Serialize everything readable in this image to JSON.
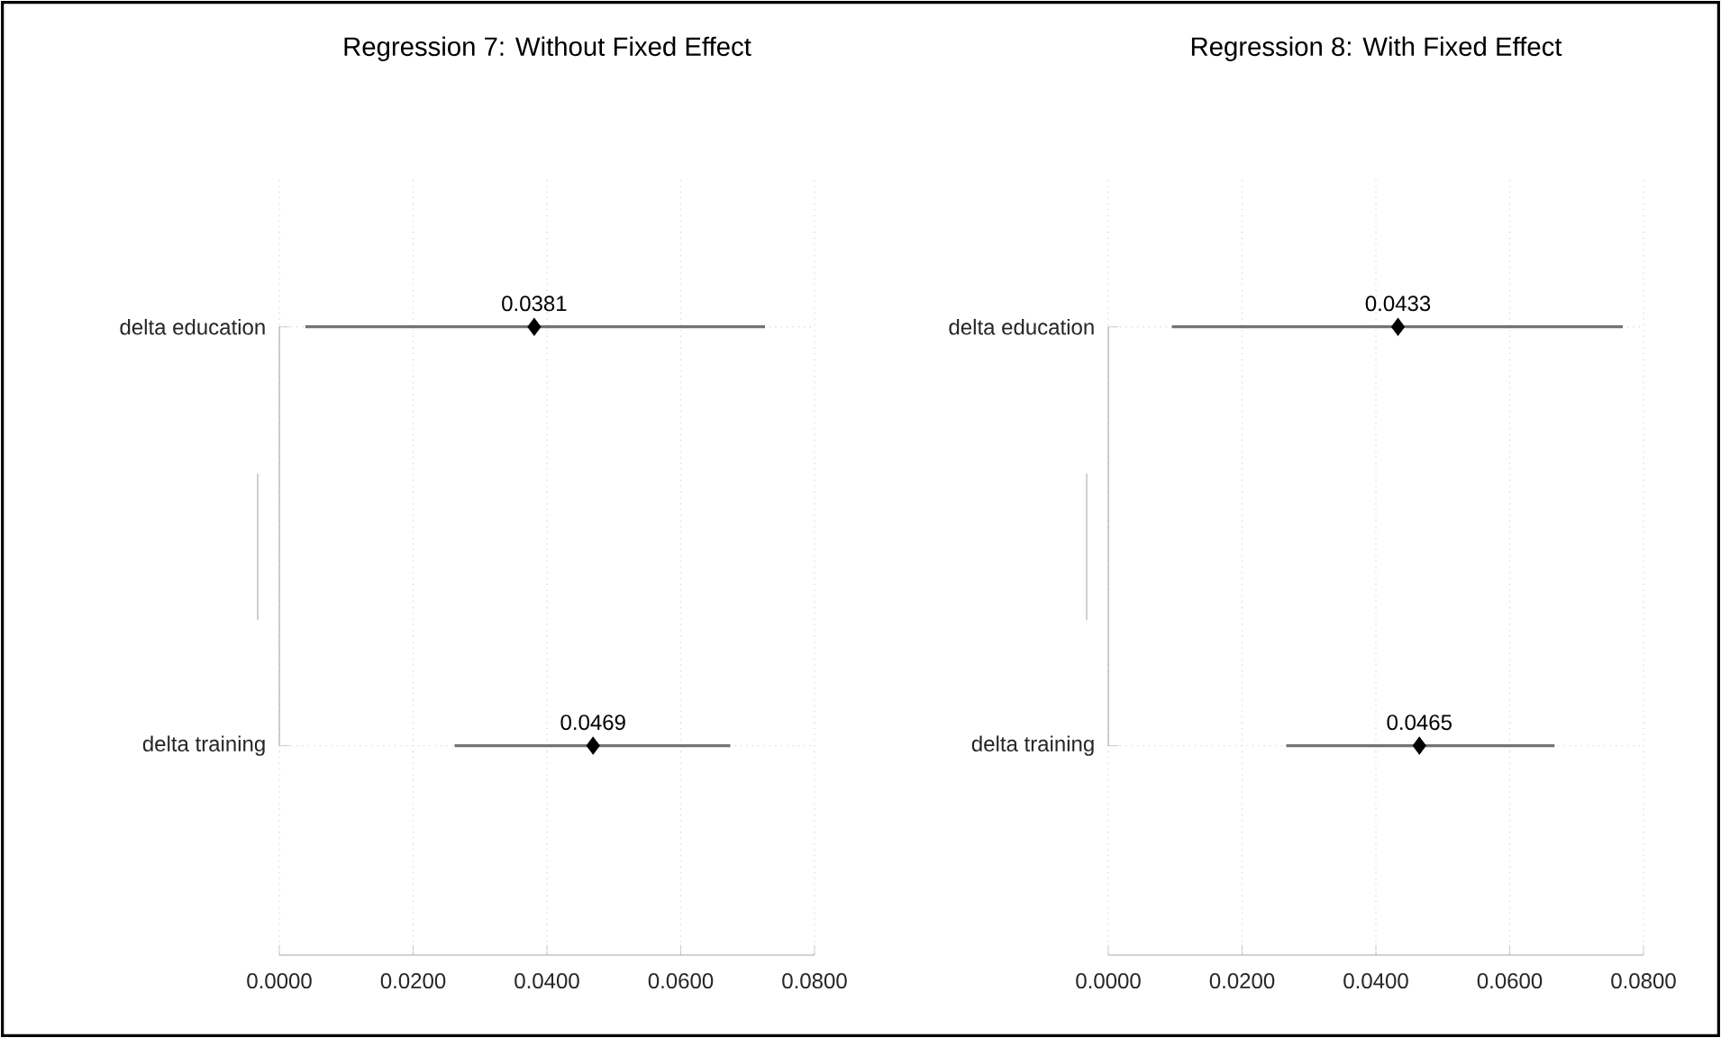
{
  "chart_data": [
    {
      "type": "scatter",
      "orientation": "horizontal",
      "title": "Regression 7: Without Fixed Effect",
      "categories": [
        "delta education",
        "delta training"
      ],
      "values": [
        0.0381,
        0.0469
      ],
      "errors": [
        [
          0.0039,
          0.0726
        ],
        [
          0.0262,
          0.0674
        ]
      ],
      "data_labels": true,
      "marker": "diamond",
      "grid": true,
      "xlim": [
        0,
        0.08
      ],
      "xticks": [
        {
          "value": 0,
          "label": "0.0000"
        },
        {
          "value": 0.02,
          "label": "0.0200"
        },
        {
          "value": 0.04,
          "label": "0.0400"
        },
        {
          "value": 0.06,
          "label": "0.0600"
        },
        {
          "value": 0.08,
          "label": "0.0800"
        }
      ]
    },
    {
      "type": "scatter",
      "orientation": "horizontal",
      "title": "Regression 8: With Fixed Effect",
      "categories": [
        "delta education",
        "delta training"
      ],
      "values": [
        0.0433,
        0.0465
      ],
      "errors": [
        [
          0.0095,
          0.0769
        ],
        [
          0.0266,
          0.0667
        ]
      ],
      "data_labels": true,
      "marker": "diamond",
      "grid": true,
      "xlim": [
        0,
        0.08
      ],
      "xticks": [
        {
          "value": 0,
          "label": "0.0000"
        },
        {
          "value": 0.02,
          "label": "0.0200"
        },
        {
          "value": 0.04,
          "label": "0.0400"
        },
        {
          "value": 0.06,
          "label": "0.0600"
        },
        {
          "value": 0.08,
          "label": "0.0800"
        }
      ]
    }
  ]
}
